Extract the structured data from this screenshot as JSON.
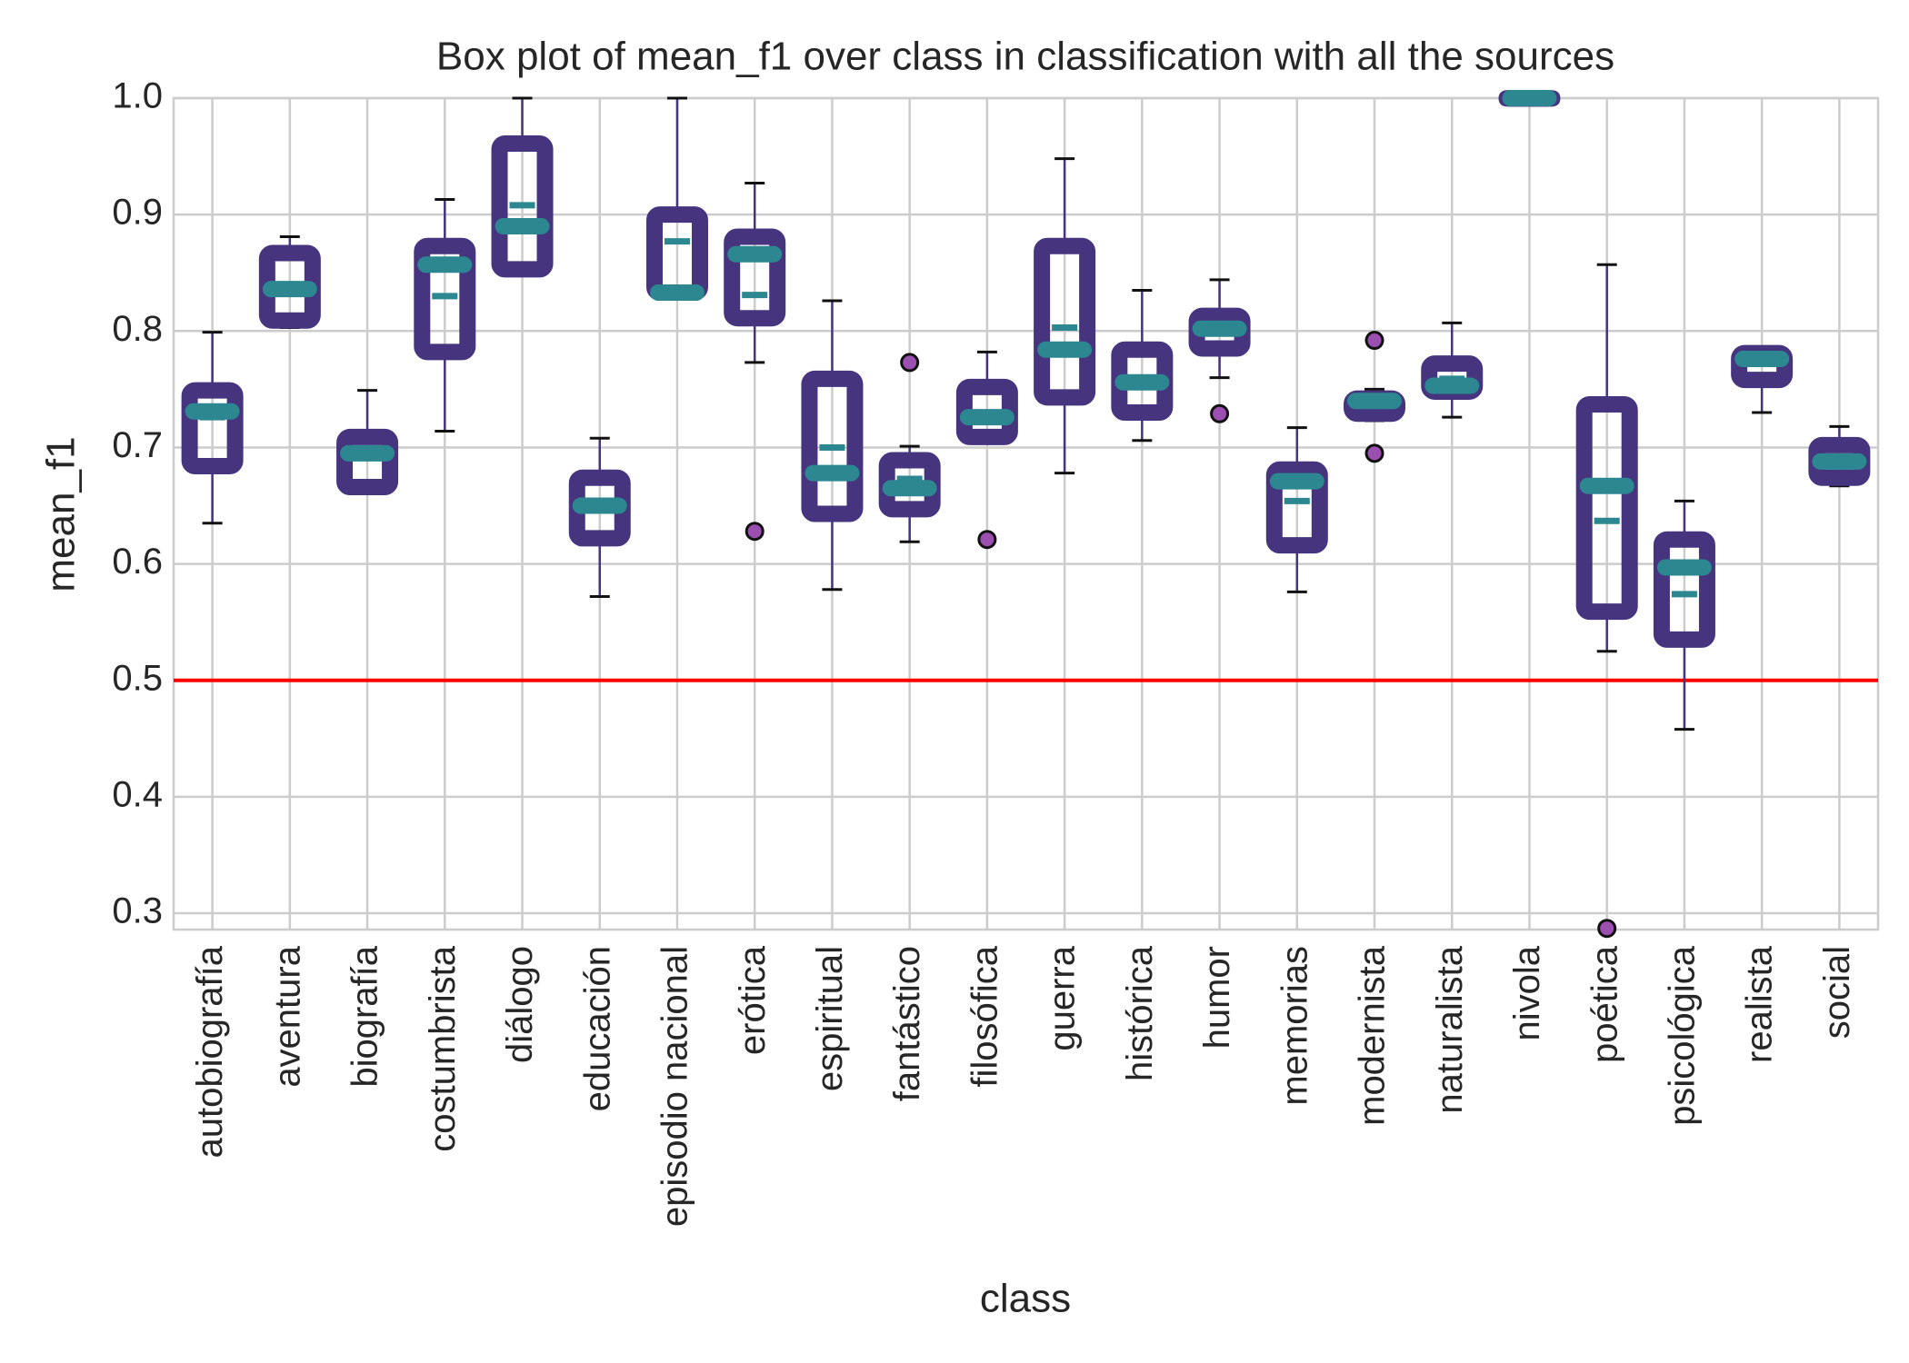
{
  "chart_data": {
    "type": "box",
    "title": "Box plot of mean_f1 over class in classification with all the sources",
    "x_label": "class",
    "y_label": "mean_f1",
    "categories": [
      "autobiografía",
      "aventura",
      "biografía",
      "costumbrista",
      "diálogo",
      "educación",
      "episodio nacional",
      "erótica",
      "espiritual",
      "fantástico",
      "filosófica",
      "guerra",
      "histórica",
      "humor",
      "memorias",
      "modernista",
      "naturalista",
      "nivola",
      "poética",
      "psicológica",
      "realista",
      "social"
    ],
    "boxes": [
      {
        "whisker_low": 0.635,
        "q1": 0.684,
        "median": 0.731,
        "q3": 0.749,
        "whisker_high": 0.799,
        "mean": 0.726,
        "outliers": []
      },
      {
        "whisker_low": 0.803,
        "q1": 0.809,
        "median": 0.836,
        "q3": 0.867,
        "whisker_high": 0.881,
        "mean": 0.836,
        "outliers": []
      },
      {
        "whisker_low": 0.663,
        "q1": 0.666,
        "median": 0.695,
        "q3": 0.709,
        "whisker_high": 0.749,
        "mean": 0.694,
        "outliers": []
      },
      {
        "whisker_low": 0.714,
        "q1": 0.782,
        "median": 0.857,
        "q3": 0.873,
        "whisker_high": 0.913,
        "mean": 0.83,
        "outliers": []
      },
      {
        "whisker_low": 0.853,
        "q1": 0.853,
        "median": 0.89,
        "q3": 0.961,
        "whisker_high": 1.0,
        "mean": 0.908,
        "outliers": []
      },
      {
        "whisker_low": 0.572,
        "q1": 0.622,
        "median": 0.65,
        "q3": 0.674,
        "whisker_high": 0.708,
        "mean": 0.65,
        "outliers": []
      },
      {
        "whisker_low": 0.833,
        "q1": 0.833,
        "median": 0.833,
        "q3": 0.9,
        "whisker_high": 1.0,
        "mean": 0.877,
        "outliers": []
      },
      {
        "whisker_low": 0.773,
        "q1": 0.811,
        "median": 0.866,
        "q3": 0.881,
        "whisker_high": 0.927,
        "mean": 0.831,
        "outliers": [
          0.628
        ]
      },
      {
        "whisker_low": 0.578,
        "q1": 0.643,
        "median": 0.678,
        "q3": 0.759,
        "whisker_high": 0.826,
        "mean": 0.7,
        "outliers": []
      },
      {
        "whisker_low": 0.619,
        "q1": 0.647,
        "median": 0.665,
        "q3": 0.689,
        "whisker_high": 0.701,
        "mean": 0.673,
        "outliers": [
          0.773
        ]
      },
      {
        "whisker_low": 0.707,
        "q1": 0.709,
        "median": 0.726,
        "q3": 0.752,
        "whisker_high": 0.782,
        "mean": 0.726,
        "outliers": [
          0.621
        ]
      },
      {
        "whisker_low": 0.678,
        "q1": 0.743,
        "median": 0.784,
        "q3": 0.873,
        "whisker_high": 0.948,
        "mean": 0.803,
        "outliers": []
      },
      {
        "whisker_low": 0.706,
        "q1": 0.73,
        "median": 0.756,
        "q3": 0.784,
        "whisker_high": 0.835,
        "mean": 0.756,
        "outliers": []
      },
      {
        "whisker_low": 0.76,
        "q1": 0.785,
        "median": 0.802,
        "q3": 0.813,
        "whisker_high": 0.844,
        "mean": 0.802,
        "outliers": [
          0.729
        ]
      },
      {
        "whisker_low": 0.576,
        "q1": 0.616,
        "median": 0.671,
        "q3": 0.681,
        "whisker_high": 0.717,
        "mean": 0.654,
        "outliers": []
      },
      {
        "whisker_low": 0.723,
        "q1": 0.729,
        "median": 0.74,
        "q3": 0.742,
        "whisker_high": 0.75,
        "mean": 0.74,
        "outliers": [
          0.792,
          0.695
        ]
      },
      {
        "whisker_low": 0.726,
        "q1": 0.748,
        "median": 0.753,
        "q3": 0.772,
        "whisker_high": 0.807,
        "mean": 0.759,
        "outliers": []
      },
      {
        "whisker_low": 1.0,
        "q1": 1.0,
        "median": 1.0,
        "q3": 1.0,
        "whisker_high": 1.0,
        "mean": 1.0,
        "outliers": []
      },
      {
        "whisker_low": 0.525,
        "q1": 0.559,
        "median": 0.667,
        "q3": 0.737,
        "whisker_high": 0.857,
        "mean": 0.637,
        "outliers": [
          0.287
        ]
      },
      {
        "whisker_low": 0.458,
        "q1": 0.535,
        "median": 0.597,
        "q3": 0.621,
        "whisker_high": 0.654,
        "mean": 0.574,
        "outliers": []
      },
      {
        "whisker_low": 0.73,
        "q1": 0.758,
        "median": 0.776,
        "q3": 0.781,
        "whisker_high": 0.786,
        "mean": 0.776,
        "outliers": []
      },
      {
        "whisker_low": 0.667,
        "q1": 0.674,
        "median": 0.688,
        "q3": 0.702,
        "whisker_high": 0.718,
        "mean": 0.688,
        "outliers": []
      }
    ],
    "box_color": "#46347f",
    "whisker_color": "#46347f",
    "median_color": "#2c8790",
    "mean_color": "#2c8790",
    "outlier_color": "#9b4fb0",
    "reference_line": {
      "value": 0.5,
      "color": "#ff0000"
    },
    "ylim": [
      0.286,
      1.0
    ],
    "yticks": [
      0.3,
      0.4,
      0.5,
      0.6,
      0.7,
      0.8,
      0.9,
      {
        "value": 1.0,
        "label": "1.0"
      }
    ],
    "grid": true
  }
}
